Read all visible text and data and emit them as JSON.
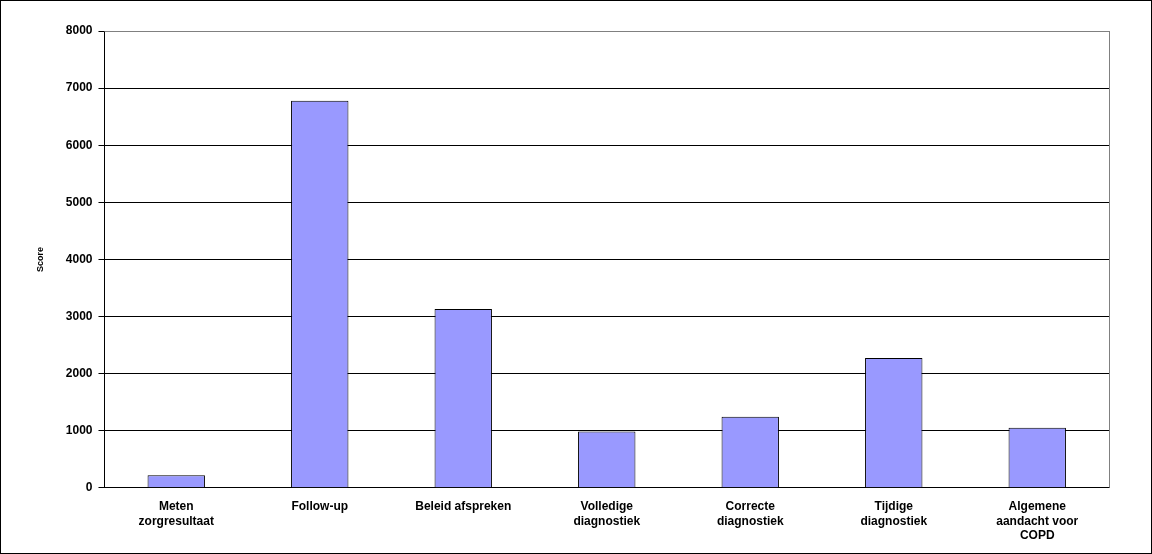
{
  "chart_data": {
    "type": "bar",
    "ylabel": "Score",
    "categories": [
      "Meten\nzorgresultaat",
      "Follow-up",
      "Beleid afspreken",
      "Volledige\ndiagnostiek",
      "Correcte\ndiagnostiek",
      "Tijdige\ndiagnostiek",
      "Algemene\naandacht voor\nCOPD"
    ],
    "values": [
      220,
      6780,
      3130,
      985,
      1245,
      2275,
      1050
    ],
    "color": "#9999ff",
    "ylim": [
      0,
      8000
    ],
    "yticks": [
      0,
      1000,
      2000,
      3000,
      4000,
      5000,
      6000,
      7000,
      8000
    ],
    "grid": "y"
  }
}
